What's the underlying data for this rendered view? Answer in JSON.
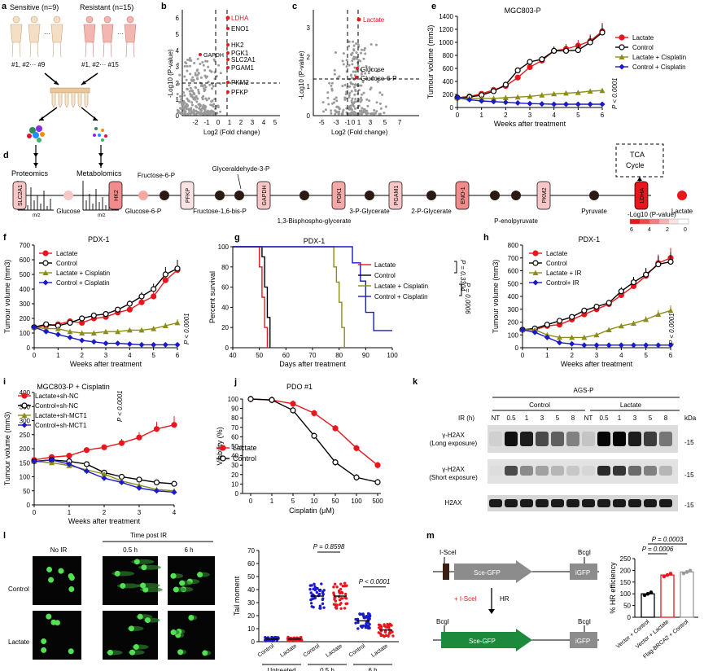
{
  "panel_a": {
    "label": "a",
    "sensitive": "Sensitive (n=9)",
    "resistant": "Resistant (n=15)",
    "sens_ids": "#1, #2··· #9",
    "res_ids": "#1, #2··· #15",
    "proteomics": "Proteomics",
    "metabolomics": "Metabolomics",
    "mz": "m/z"
  },
  "panel_b": {
    "label": "b",
    "ylabel": "-Log10 (P-value)",
    "xlabel": "Log2 (Fold change)",
    "xticks": [
      "-2",
      "-1",
      "0",
      "1",
      "2",
      "3",
      "4",
      "5"
    ],
    "yticks": [
      "0",
      "1",
      "2",
      "3",
      "4",
      "5",
      "6"
    ],
    "highlight": "LDHA",
    "genes": [
      "ENO1",
      "HK2",
      "PGK1",
      "SLC2A1",
      "PGAM1",
      "GAPDH",
      "PKM2",
      "PFKP"
    ]
  },
  "panel_c": {
    "label": "c",
    "ylabel": "-Log10 (P-value)",
    "xlabel": "Log2 (Fold change)",
    "xticks": [
      "-5",
      "-3",
      "-1",
      "0",
      "1",
      "3",
      "5",
      "7"
    ],
    "yticks": [
      "0",
      "1",
      "2",
      "3"
    ],
    "highlight": "Lactate",
    "metabolites": [
      "Glucose",
      "Glucose-6-P"
    ]
  },
  "panel_d": {
    "label": "d",
    "tca": "TCA Cycle",
    "enzymes": [
      "SLC2A1",
      "HK2",
      "PFKP",
      "GAPDH",
      "PGK1",
      "PGAM1",
      "ENO-1",
      "PKM2",
      "LDHA"
    ],
    "metabolites_below": [
      "Glucose",
      "Glucose-6-P",
      "Fructose-1,6-bis-P",
      "3-P-Glycerate",
      "2-P-Glycerate",
      "Pyruvate",
      "Lactate"
    ],
    "metabolites_above": [
      "Fructose-6-P",
      "Glyceraldehyde-3-P"
    ],
    "metabolites_lower2": [
      "1,3-Bisphospho-glycerate",
      "P-enolpyruvate"
    ],
    "scale_title": "-Log10 (P-value)",
    "scale_ticks": [
      "6",
      "4",
      "2",
      "0"
    ]
  },
  "colors": {
    "red": "#e8171d",
    "olive": "#8c8c1a",
    "blue": "#1a1acc",
    "black": "#000000"
  },
  "chart_data": [
    {
      "panel": "e",
      "type": "line",
      "title": "MGC803-P",
      "xlabel": "Weeks after treatment",
      "ylabel": "Tumour volume (mm3)",
      "x": [
        0,
        0.5,
        1,
        1.5,
        2,
        2.5,
        3,
        3.5,
        4,
        4.5,
        5,
        5.5,
        6
      ],
      "ylim": [
        0,
        1400
      ],
      "yticks": [
        "0",
        "200",
        "400",
        "600",
        "800",
        "1000",
        "1200",
        "1400"
      ],
      "xticks": [
        "0",
        "1",
        "2",
        "3",
        "4",
        "5",
        "6"
      ],
      "series": [
        {
          "name": "Lactate",
          "values": [
            150,
            170,
            210,
            270,
            330,
            460,
            620,
            720,
            870,
            900,
            950,
            1020,
            1170
          ]
        },
        {
          "name": "Control",
          "values": [
            150,
            160,
            190,
            250,
            350,
            570,
            700,
            740,
            870,
            870,
            880,
            1000,
            1150
          ]
        },
        {
          "name": "Lactate + Cisplatin",
          "values": [
            150,
            140,
            140,
            140,
            150,
            160,
            170,
            190,
            210,
            220,
            230,
            250,
            260
          ]
        },
        {
          "name": "Control + Cisplatin",
          "values": [
            150,
            120,
            100,
            90,
            80,
            70,
            60,
            55,
            50,
            50,
            50,
            50,
            50
          ]
        }
      ],
      "pvalue": "P < 0.0001"
    },
    {
      "panel": "f",
      "type": "line",
      "title": "PDX-1",
      "xlabel": "Weeks after treatment",
      "ylabel": "Tumour volume (mm3)",
      "x": [
        0,
        0.5,
        1,
        1.5,
        2,
        2.5,
        3,
        3.5,
        4,
        4.5,
        5,
        5.5,
        6
      ],
      "ylim": [
        0,
        700
      ],
      "yticks": [
        "0",
        "100",
        "200",
        "300",
        "400",
        "500",
        "600",
        "700"
      ],
      "xticks": [
        "0",
        "1",
        "2",
        "3",
        "4",
        "5",
        "6"
      ],
      "series": [
        {
          "name": "Lactate",
          "values": [
            140,
            150,
            160,
            180,
            170,
            200,
            210,
            240,
            260,
            310,
            350,
            460,
            530
          ]
        },
        {
          "name": "Control",
          "values": [
            140,
            160,
            150,
            170,
            200,
            220,
            230,
            260,
            300,
            350,
            400,
            500,
            540
          ]
        },
        {
          "name": "Lactate + Cisplatin",
          "values": [
            140,
            130,
            130,
            110,
            100,
            100,
            110,
            110,
            120,
            120,
            130,
            150,
            170
          ]
        },
        {
          "name": "Control + Cisplatin",
          "values": [
            140,
            110,
            90,
            70,
            50,
            40,
            30,
            30,
            25,
            20,
            20,
            20,
            20
          ]
        }
      ],
      "pvalue": "P < 0.0001"
    },
    {
      "panel": "g",
      "type": "line",
      "title": "PDX-1",
      "xlabel": "Days after treatment",
      "ylabel": "Percent survival",
      "xlim": [
        40,
        100
      ],
      "ylim": [
        0,
        100
      ],
      "xticks": [
        "40",
        "50",
        "60",
        "70",
        "80",
        "90",
        "100"
      ],
      "yticks": [
        "0",
        "20",
        "40",
        "60",
        "80",
        "100"
      ],
      "series": [
        {
          "name": "Lactate",
          "x": [
            40,
            50,
            50,
            51,
            51,
            52,
            52,
            53,
            53
          ],
          "values": [
            100,
            100,
            80,
            80,
            50,
            50,
            20,
            20,
            0
          ]
        },
        {
          "name": "Control",
          "x": [
            40,
            51,
            51,
            52,
            52,
            53,
            53,
            54,
            54
          ],
          "values": [
            100,
            100,
            90,
            90,
            60,
            60,
            30,
            30,
            0
          ]
        },
        {
          "name": "Lactate + Cisplatin",
          "x": [
            40,
            78,
            78,
            79,
            79,
            80,
            80,
            81,
            81,
            82,
            82
          ],
          "values": [
            100,
            100,
            80,
            80,
            65,
            65,
            45,
            45,
            20,
            20,
            0
          ]
        },
        {
          "name": "Control + Cisplatin",
          "x": [
            40,
            85,
            85,
            88,
            88,
            90,
            90,
            93,
            93,
            100
          ],
          "values": [
            100,
            100,
            84,
            84,
            66,
            66,
            35,
            35,
            17,
            17
          ]
        }
      ],
      "pvalues": [
        "P = 0.3304",
        "P = 0.0006"
      ]
    },
    {
      "panel": "h",
      "type": "line",
      "title": "PDX-1",
      "xlabel": "Weeks after treatment",
      "ylabel": "Tumour volume (mm3)",
      "x": [
        0,
        0.5,
        1,
        1.5,
        2,
        2.5,
        3,
        3.5,
        4,
        4.5,
        5,
        5.5,
        6
      ],
      "ylim": [
        0,
        800
      ],
      "yticks": [
        "0",
        "100",
        "200",
        "300",
        "400",
        "500",
        "600",
        "700",
        "800"
      ],
      "xticks": [
        "0",
        "1",
        "2",
        "3",
        "4",
        "5",
        "6"
      ],
      "series": [
        {
          "name": "Lactate",
          "values": [
            140,
            140,
            170,
            180,
            220,
            260,
            300,
            340,
            410,
            480,
            560,
            660,
            700
          ]
        },
        {
          "name": "Control",
          "values": [
            140,
            150,
            180,
            210,
            240,
            290,
            320,
            350,
            440,
            510,
            570,
            650,
            670
          ]
        },
        {
          "name": "Lactate + IR",
          "values": [
            140,
            140,
            100,
            80,
            80,
            80,
            100,
            140,
            170,
            190,
            220,
            260,
            290
          ]
        },
        {
          "name": "Control+ IR",
          "values": [
            140,
            120,
            80,
            40,
            30,
            20,
            20,
            20,
            20,
            20,
            20,
            20,
            20
          ]
        }
      ],
      "pvalue": "P < 0.0001"
    },
    {
      "panel": "i",
      "type": "line",
      "title": "MGC803-P + Cisplatin",
      "xlabel": "Weeks after treatment",
      "ylabel": "Tumour volume (mm3)",
      "x": [
        0,
        0.5,
        1,
        1.5,
        2,
        2.5,
        3,
        3.5,
        4
      ],
      "ylim": [
        0,
        400
      ],
      "yticks": [
        "0",
        "50",
        "100",
        "150",
        "200",
        "250",
        "300",
        "350",
        "400"
      ],
      "xticks": [
        "0",
        "1",
        "2",
        "3",
        "4"
      ],
      "series": [
        {
          "name": "Lactate+sh-NC",
          "values": [
            160,
            170,
            175,
            195,
            205,
            220,
            240,
            270,
            285
          ]
        },
        {
          "name": "Control+sh-NC",
          "values": [
            155,
            160,
            155,
            145,
            115,
            100,
            90,
            80,
            75
          ]
        },
        {
          "name": "Lactate+sh-MCT1",
          "values": [
            155,
            150,
            140,
            125,
            110,
            85,
            70,
            55,
            50
          ]
        },
        {
          "name": "Control+sh-MCT1",
          "values": [
            155,
            160,
            145,
            120,
            95,
            80,
            60,
            50,
            45
          ]
        }
      ],
      "pvalue": "P < 0.0001"
    },
    {
      "panel": "j",
      "type": "line",
      "title": "PDO #1",
      "xlabel": "Cisplatin (μM)",
      "ylabel": "Viability (%)",
      "categories": [
        "0",
        "1",
        "5",
        "10",
        "50",
        "100",
        "500"
      ],
      "ylim": [
        0,
        100
      ],
      "yticks": [
        "0",
        "10",
        "20",
        "30",
        "40",
        "50",
        "60",
        "70",
        "80",
        "90",
        "100"
      ],
      "series": [
        {
          "name": "Lactate",
          "values": [
            100,
            99,
            95,
            85,
            69,
            48,
            30
          ]
        },
        {
          "name": "Control",
          "values": [
            100,
            99,
            88,
            61,
            33,
            17,
            12
          ]
        }
      ]
    },
    {
      "panel": "l",
      "type": "scatter",
      "ylabel": "Tail moment",
      "categories": [
        "Control",
        "Lactate",
        "Control",
        "Lactate",
        "Control",
        "Lactate"
      ],
      "groups": [
        "Untreated",
        "0.5 h",
        "6 h"
      ],
      "means": [
        2,
        2,
        35,
        35,
        16,
        9
      ],
      "ylim": [
        0,
        70
      ],
      "yticks": [
        "0",
        "10",
        "20",
        "30",
        "40",
        "50",
        "60",
        "70"
      ],
      "pvalues": [
        "P = 0.8598",
        "P < 0.0001"
      ]
    },
    {
      "panel": "m",
      "type": "bar",
      "ylabel": "% HR efficiency",
      "categories": [
        "Vector + Control",
        "Vector + Lactate",
        "Flag-BRCA2 + Control"
      ],
      "values": [
        100,
        180,
        193
      ],
      "ylim": [
        0,
        250
      ],
      "yticks": [
        "0",
        "50",
        "100",
        "150",
        "200",
        "250"
      ],
      "pvalues": [
        "P = 0.0006",
        "P = 0.0003"
      ]
    }
  ],
  "legends": {
    "e": [
      "Lactate",
      "Control",
      "Lactate + Cisplatin",
      "Control + Cisplatin"
    ],
    "f": [
      "Lactate",
      "Control",
      "Lactate + Cisplatin",
      "Control + Cisplatin"
    ],
    "g": [
      "Lactate",
      "Control",
      "Lactate + Cisplatin",
      "Control + Cisplatin"
    ],
    "h": [
      "Lactate",
      "Control",
      "Lactate + IR",
      "Control+ IR"
    ],
    "i": [
      "Lactate+sh-NC",
      "Control+sh-NC",
      "Lactate+sh-MCT1",
      "Control+sh-MCT1"
    ],
    "j": [
      "Lactate",
      "Control"
    ]
  },
  "panel_k": {
    "label": "k",
    "title": "AGS-P",
    "ir": "IR (h)",
    "groups": [
      "Control",
      "Lactate"
    ],
    "lanes": [
      "NT",
      "0.5",
      "1",
      "3",
      "5",
      "8",
      "NT",
      "0.5",
      "1",
      "3",
      "5",
      "8"
    ],
    "kda": "kDa",
    "rows": [
      "γ-H2AX\n(Long exposure)",
      "γ-H2AX\n(Short exposure)",
      "H2AX"
    ],
    "row_a": "γ-H2AX",
    "row_a2": "(Long exposure)",
    "row_b": "γ-H2AX",
    "row_b2": "(Short exposure)",
    "row_c": "H2AX",
    "mw": "-15"
  },
  "panel_l": {
    "label": "l",
    "time_post": "Time post IR",
    "cols": [
      "No IR",
      "0.5 h",
      "6 h"
    ],
    "rows": [
      "Control",
      "Lactate"
    ]
  },
  "panel_m": {
    "label": "m",
    "isce": "I-SceI",
    "bcgl": "BcgI",
    "scegfp": "Sce-GFP",
    "igfp": "iGFP",
    "plus": "+ I-SceI",
    "hr": "HR"
  }
}
